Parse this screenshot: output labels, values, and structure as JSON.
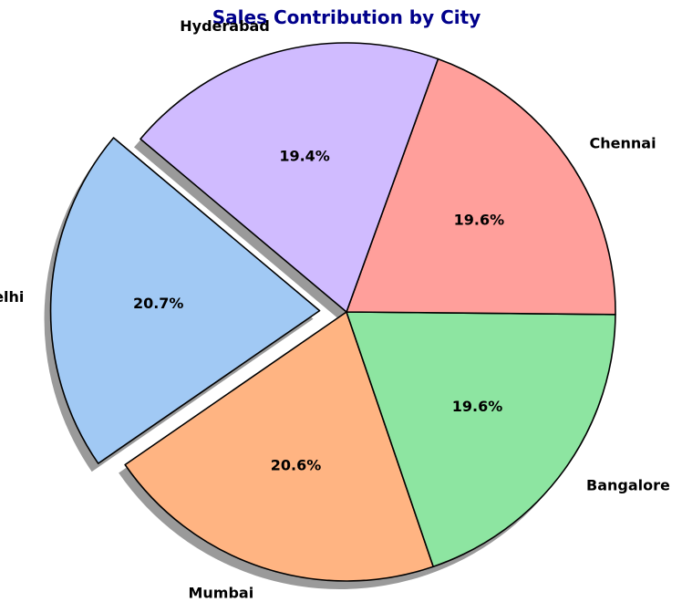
{
  "chart_data": {
    "type": "pie",
    "title": "Sales Contribution by City",
    "categories": [
      "Delhi",
      "Mumbai",
      "Bangalore",
      "Chennai",
      "Hyderabad"
    ],
    "values": [
      20.7,
      20.6,
      19.6,
      19.6,
      19.4
    ],
    "value_labels": [
      "20.7%",
      "20.6%",
      "19.6%",
      "19.6%",
      "19.4%"
    ],
    "colors": [
      "#a1c9f4",
      "#ffb482",
      "#8de5a1",
      "#ff9f9b",
      "#d0bbff"
    ],
    "exploded": [
      "Delhi"
    ],
    "shadow": true,
    "edge_color": "#000000",
    "title_color": "#00008b"
  }
}
